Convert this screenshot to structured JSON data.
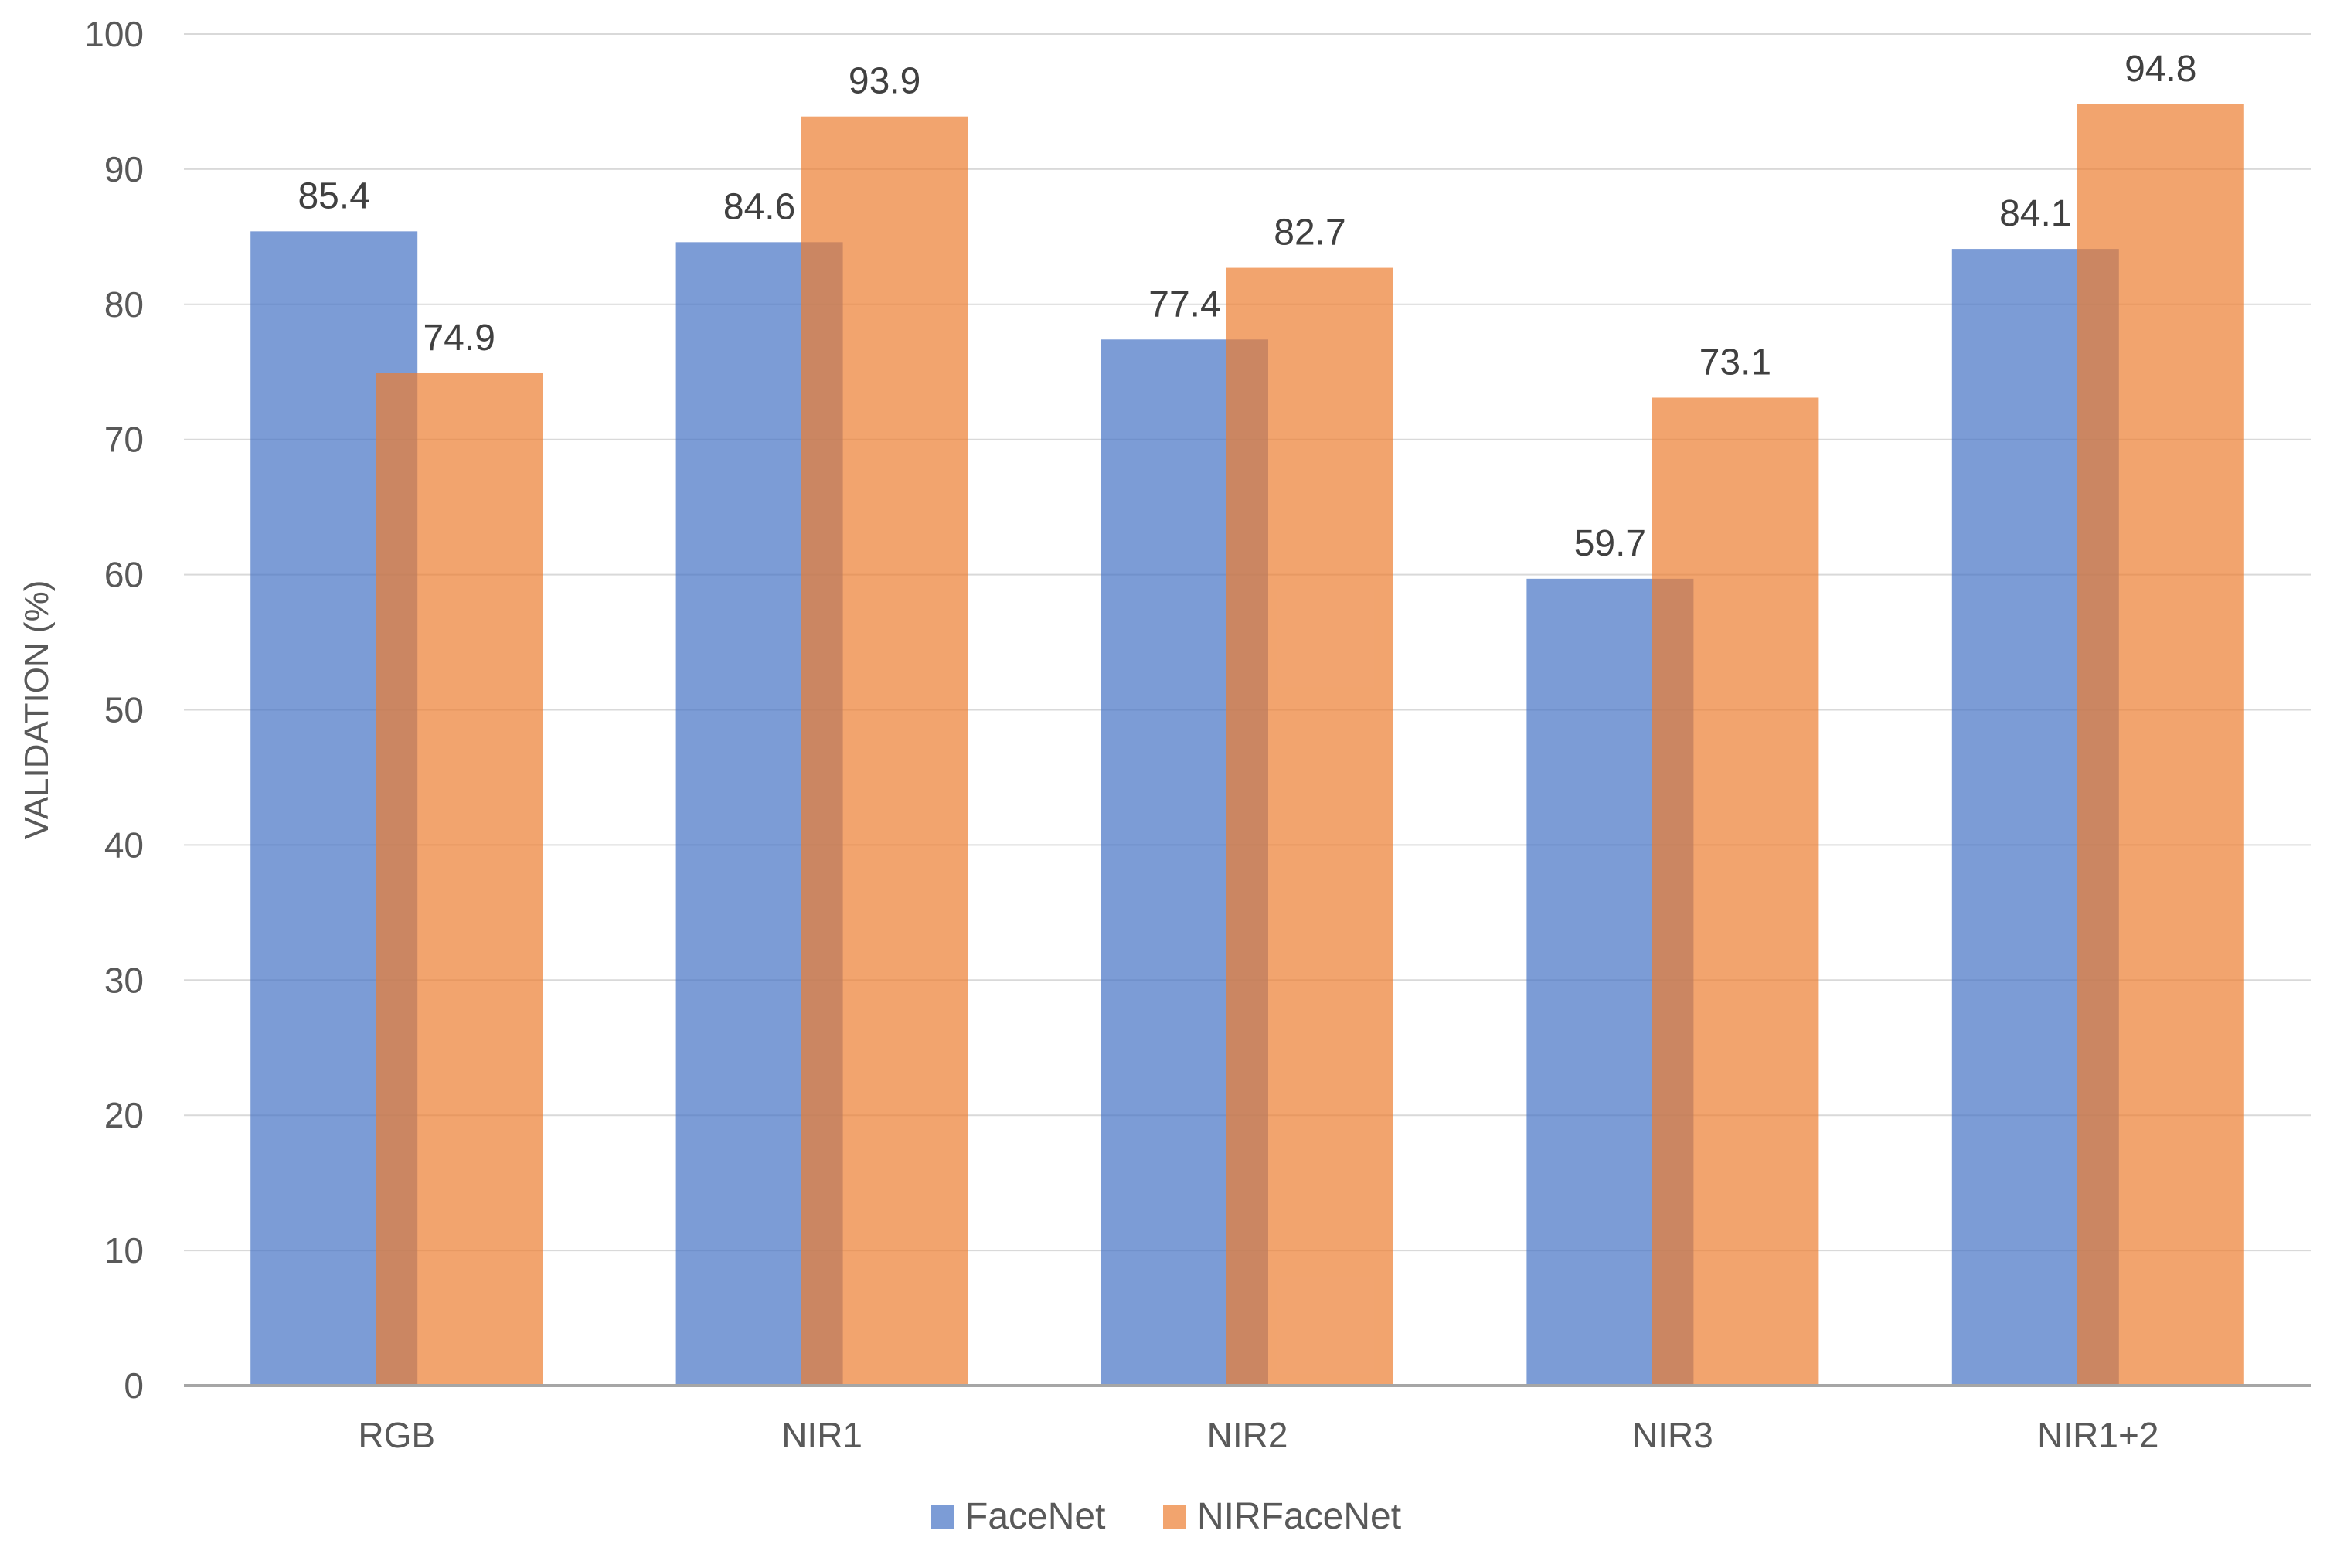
{
  "chart_data": {
    "type": "bar",
    "title": "",
    "xlabel": "",
    "ylabel": "VALIDATION (%)",
    "ylim": [
      0,
      100
    ],
    "ytick_step": 10,
    "yticks": [
      "0",
      "10",
      "20",
      "30",
      "40",
      "50",
      "60",
      "70",
      "80",
      "90",
      "100"
    ],
    "categories": [
      "RGB",
      "NIR1",
      "NIR2",
      "NIR3",
      "NIR1+2"
    ],
    "series": [
      {
        "name": "FaceNet",
        "color": "#4472C4",
        "values": [
          85.4,
          84.6,
          77.4,
          59.7,
          84.1
        ],
        "labels": [
          "85.4",
          "84.6",
          "77.4",
          "59.7",
          "84.1"
        ]
      },
      {
        "name": "NIRFaceNet",
        "color": "#ED7D31",
        "values": [
          74.9,
          93.9,
          82.7,
          73.1,
          94.8
        ],
        "labels": [
          "74.9",
          "93.9",
          "82.7",
          "73.1",
          "94.8"
        ]
      }
    ],
    "grid": true,
    "legend_position": "bottom"
  }
}
